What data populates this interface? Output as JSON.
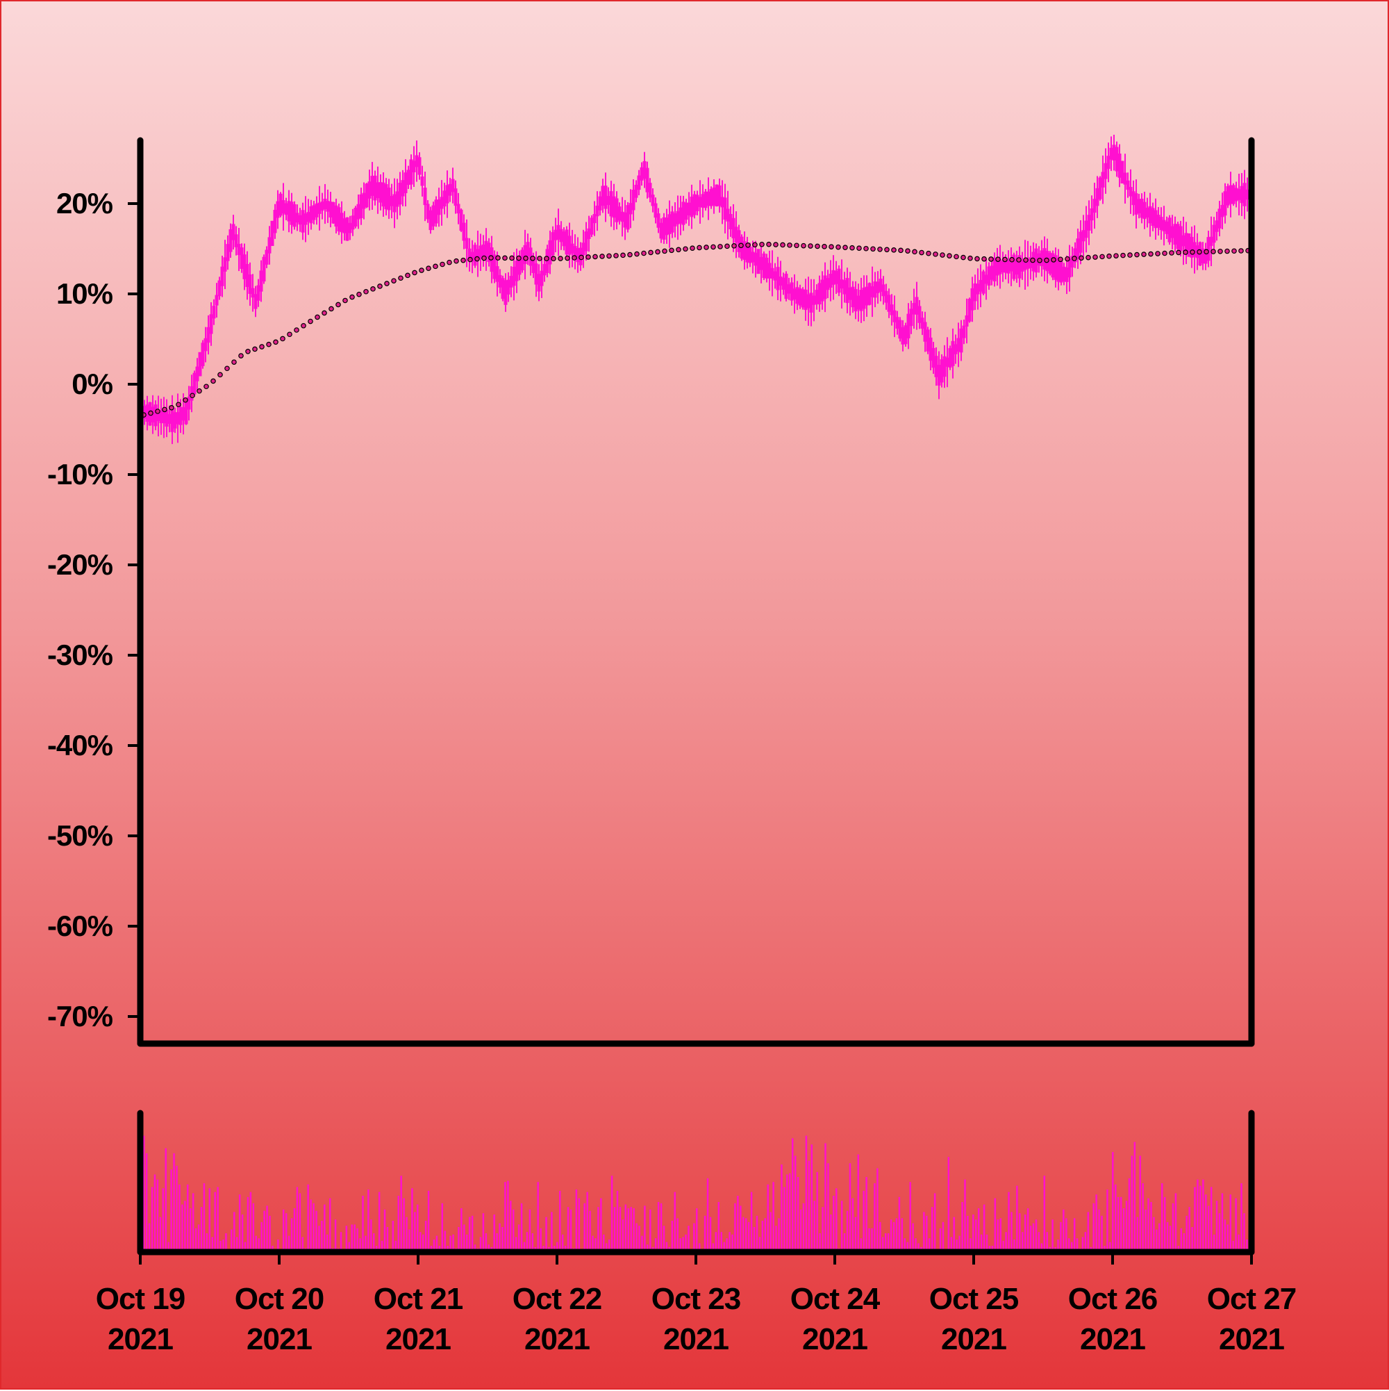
{
  "colors": {
    "background_top": "#fbd8d9",
    "background_bottom": "#e4363a",
    "price": "#ff10d0",
    "volume": "#ff10d0",
    "trend_dots": "#e0208a",
    "axes": "#000000"
  },
  "chart_data": [
    {
      "type": "line",
      "style": "ohlc-bars",
      "ylim": [
        -73,
        27
      ],
      "y_ticks": [
        "20%",
        "10%",
        "0%",
        "-10%",
        "-20%",
        "-30%",
        "-40%",
        "-50%",
        "-60%",
        "-70%"
      ],
      "y_tick_values": [
        20,
        10,
        0,
        -10,
        -20,
        -30,
        -40,
        -50,
        -60,
        -70
      ],
      "x_ticks": [
        {
          "date": "2021-10-19",
          "month_day": "Oct 19",
          "year": "2021"
        },
        {
          "date": "2021-10-20",
          "month_day": "Oct 20",
          "year": "2021"
        },
        {
          "date": "2021-10-21",
          "month_day": "Oct 21",
          "year": "2021"
        },
        {
          "date": "2021-10-22",
          "month_day": "Oct 22",
          "year": "2021"
        },
        {
          "date": "2021-10-23",
          "month_day": "Oct 23",
          "year": "2021"
        },
        {
          "date": "2021-10-24",
          "month_day": "Oct 24",
          "year": "2021"
        },
        {
          "date": "2021-10-25",
          "month_day": "Oct 25",
          "year": "2021"
        },
        {
          "date": "2021-10-26",
          "month_day": "Oct 26",
          "year": "2021"
        },
        {
          "date": "2021-10-27",
          "month_day": "Oct 27",
          "year": "2021"
        }
      ],
      "xlim": [
        "2021-10-19",
        "2021-10-27"
      ],
      "series": [
        {
          "x": [
            "2021-10-19 00:00",
            "2021-10-19 06:00",
            "2021-10-19 08:00",
            "2021-10-19 12:00",
            "2021-10-19 16:00",
            "2021-10-19 20:00",
            "2021-10-20 00:00",
            "2021-10-20 04:00",
            "2021-10-20 08:00",
            "2021-10-20 12:00",
            "2021-10-20 16:00",
            "2021-10-20 20:00",
            "2021-10-21 00:00",
            "2021-10-21 02:00",
            "2021-10-21 06:00",
            "2021-10-21 09:00",
            "2021-10-21 12:00",
            "2021-10-21 15:00",
            "2021-10-21 19:00",
            "2021-10-21 21:00",
            "2021-10-22 00:00",
            "2021-10-22 04:00",
            "2021-10-22 08:00",
            "2021-10-22 12:00",
            "2021-10-22 15:00",
            "2021-10-22 18:00",
            "2021-10-23 00:00",
            "2021-10-23 04:00",
            "2021-10-23 08:00",
            "2021-10-23 12:00",
            "2021-10-23 17:00",
            "2021-10-23 20:00",
            "2021-10-24 00:00",
            "2021-10-24 04:00",
            "2021-10-24 08:00",
            "2021-10-24 12:00",
            "2021-10-24 14:00",
            "2021-10-24 18:00",
            "2021-10-24 22:00",
            "2021-10-25 00:00",
            "2021-10-25 04:00",
            "2021-10-25 08:00",
            "2021-10-25 12:00",
            "2021-10-25 16:00",
            "2021-10-25 20:00",
            "2021-10-26 00:00",
            "2021-10-26 04:00",
            "2021-10-26 08:00",
            "2021-10-26 12:00",
            "2021-10-26 16:00",
            "2021-10-26 20:00",
            "2021-10-27 00:00"
          ],
          "values": [
            -3,
            -4,
            -3,
            6,
            17,
            9,
            20,
            18,
            20,
            17,
            22,
            20,
            25,
            18,
            22,
            14,
            15,
            10,
            15,
            11,
            17,
            14,
            21,
            18,
            24,
            17,
            20,
            21,
            15,
            13,
            10,
            9,
            12,
            9,
            11,
            5,
            9,
            1,
            5,
            10,
            13,
            13,
            14,
            12,
            18,
            26,
            20,
            18,
            16,
            14,
            21,
            21
          ]
        },
        {
          "style": "dotted",
          "x": [
            "2021-10-19 00:00",
            "2021-10-19 06:00",
            "2021-10-19 12:00",
            "2021-10-19 18:00",
            "2021-10-20 00:00",
            "2021-10-20 06:00",
            "2021-10-20 12:00",
            "2021-10-20 18:00",
            "2021-10-21 00:00",
            "2021-10-21 06:00",
            "2021-10-21 12:00",
            "2021-10-22 00:00",
            "2021-10-22 12:00",
            "2021-10-23 00:00",
            "2021-10-23 12:00",
            "2021-10-24 00:00",
            "2021-10-24 12:00",
            "2021-10-25 00:00",
            "2021-10-25 12:00",
            "2021-10-26 00:00",
            "2021-10-26 12:00",
            "2021-10-27 00:00"
          ],
          "values": [
            -3.5,
            -2.5,
            0,
            3.5,
            4.8,
            7.2,
            9.5,
            11,
            12.5,
            13.6,
            14,
            13.9,
            14.3,
            15.1,
            15.5,
            15.2,
            14.8,
            13.9,
            13.7,
            14.2,
            14.6,
            14.8
          ]
        }
      ]
    },
    {
      "type": "bar",
      "role": "volume",
      "ylim": [
        0,
        1
      ],
      "values": [
        0.93,
        0.79,
        0.23,
        0.52,
        0.62,
        0.58,
        0.28,
        0.51,
        0.83,
        0.08,
        0.66,
        0.79,
        0.69,
        0.54,
        0.38,
        0.41,
        0.54,
        0.35,
        0.47,
        0.19,
        0.22,
        0.36,
        0.55,
        0.15,
        0.51,
        0.12,
        0.48,
        0.52,
        0.09,
        0.1,
        0.15,
        0.0,
        0.18,
        0.32,
        0.12,
        0.46,
        0.3,
        0.08,
        0.44,
        0.48,
        0.39,
        0.13,
        0.11,
        0.24,
        0.33,
        0.37,
        0.29,
        0.05,
        0.0,
        0.1,
        0.0,
        0.34,
        0.31,
        0.13,
        0.27,
        0.35,
        0.52,
        0.47,
        0.12,
        0.03,
        0.54,
        0.42,
        0.39,
        0.33,
        0.21,
        0.25,
        0.38,
        0.14,
        0.43,
        0.03,
        0.26,
        0.03,
        0.16,
        0.02,
        0.21,
        0.08,
        0.22,
        0.22,
        0.19,
        0.11,
        0.45,
        0.13,
        0.5,
        0.26,
        0.15,
        0.05,
        0.48,
        0.09,
        0.34,
        0.2,
        0.0,
        0.25,
        0.09,
        0.45,
        0.61,
        0.43,
        0.28,
        0.18,
        0.51,
        0.32,
        0.38,
        0.16,
        0.14,
        0.25,
        0.49,
        0.05,
        0.1,
        0.13,
        0.05,
        0.39,
        0.17,
        0.05,
        0.13,
        0.14,
        0.03,
        0.2,
        0.35,
        0.22,
        0.14,
        0.28,
        0.29,
        0.06,
        0.03,
        0.12,
        0.31,
        0.15,
        0.06,
        0.04,
        0.3,
        0.15,
        0.23,
        0.2,
        0.56,
        0.57,
        0.41,
        0.34,
        0.12,
        0.22,
        0.39,
        0.08,
        0.16,
        0.34,
        0.15,
        0.04,
        0.56,
        0.19,
        0.05,
        0.28,
        0.04,
        0.32,
        0.05,
        0.08,
        0.49,
        0.14,
        0.05,
        0.36,
        0.34,
        0.03,
        0.5,
        0.43,
        0.02,
        0.39,
        0.48,
        0.33,
        0.13,
        0.11,
        0.36,
        0.43,
        0.14,
        0.07,
        0.1,
        0.61,
        0.36,
        0.49,
        0.36,
        0.26,
        0.38,
        0.35,
        0.36,
        0.35,
        0.23,
        0.21,
        0.13,
        0.37,
        0.06,
        0.34,
        0.04,
        0.11,
        0.4,
        0.39,
        0.21,
        0.08,
        0.04,
        0.25,
        0.48,
        0.27,
        0.11,
        0.12,
        0.14,
        0.21,
        0.02,
        0.23,
        0.35,
        0.07,
        0.0,
        0.29,
        0.59,
        0.28,
        0.07,
        0.16,
        0.4,
        0.16,
        0.08,
        0.11,
        0.16,
        0.14,
        0.39,
        0.45,
        0.37,
        0.28,
        0.27,
        0.24,
        0.48,
        0.2,
        0.29,
        0.12,
        0.25,
        0.27,
        0.54,
        0.32,
        0.56,
        0.21,
        0.27,
        0.7,
        0.52,
        0.62,
        0.63,
        0.91,
        0.77,
        0.6,
        0.34,
        0.39,
        0.93,
        0.73,
        0.86,
        0.41,
        0.64,
        0.15,
        0.36,
        0.87,
        0.71,
        0.3,
        0.45,
        0.51,
        0.03,
        0.41,
        0.15,
        0.33,
        0.71,
        0.43,
        0.28,
        0.78,
        0.11,
        0.49,
        0.6,
        0.19,
        0.19,
        0.55,
        0.67,
        0.24,
        0.12,
        0.15,
        0.15,
        0.26,
        0.24,
        0.27,
        0.44,
        0.27,
        0.11,
        0.08,
        0.56,
        0.23,
        0.11,
        0.07,
        0.04,
        0.32,
        0.29,
        0.11,
        0.36,
        0.47,
        0.02,
        0.19,
        0.24,
        0.02,
        0.76,
        0.12,
        0.28,
        0.1,
        0.13,
        0.4,
        0.58,
        0.29,
        0.11,
        0.3,
        0.26,
        0.35,
        0.14,
        0.38,
        0.14,
        0.05,
        0.05,
        0.43,
        0.26,
        0.27,
        0.09,
        0.16,
        0.48,
        0.32,
        0.1,
        0.53,
        0.31,
        0.16,
        0.3,
        0.35,
        0.21,
        0.23,
        0.26,
        0.16,
        0.07,
        0.61,
        0.16,
        0.04,
        0.26,
        0.04,
        0.1,
        0.24,
        0.34,
        0.27,
        0.11,
        0.08,
        0.27,
        0.11,
        0.03,
        0.12,
        0.16,
        0.32,
        0.04,
        0.39,
        0.46,
        0.34,
        0.29,
        0.05,
        0.5,
        0.08,
        0.8,
        0.54,
        0.44,
        0.44,
        0.35,
        0.41,
        0.59,
        0.77,
        0.88,
        0.28,
        0.77,
        0.55,
        0.34,
        0.43,
        0.4,
        0.28,
        0.18,
        0.23,
        0.55,
        0.44,
        0.24,
        0.21,
        0.39,
        0.47,
        0.05,
        0.19,
        0.15,
        0.29,
        0.36,
        0.2,
        0.52,
        0.58,
        0.53,
        0.58,
        0.46,
        0.37,
        0.52,
        0.14,
        0.41,
        0.31,
        0.47,
        0.26,
        0.22,
        0.46,
        0.09,
        0.43,
        0.14,
        0.55,
        0.31,
        0.1,
        0.24,
        0.16
      ]
    }
  ]
}
